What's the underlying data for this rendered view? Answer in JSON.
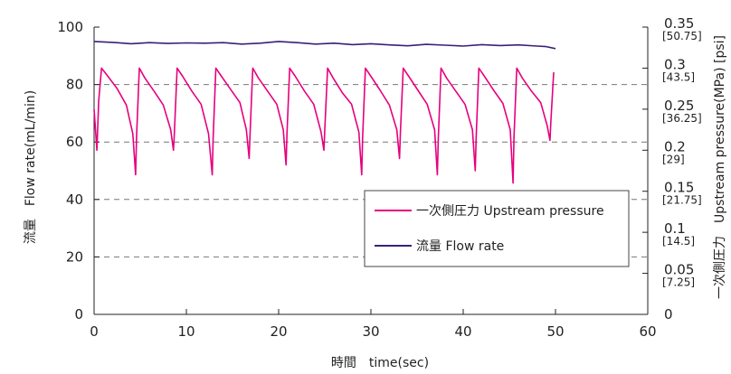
{
  "chart_data": {
    "type": "line",
    "xlabel": "時間　time(sec)",
    "ylabel_left": "流量　Flow rate(mL/min)",
    "ylabel_right": "一次側圧力　Upstream pressure(MPa) [psi]",
    "xlim": [
      0,
      60
    ],
    "ylim_left": [
      0,
      100
    ],
    "ylim_right": [
      0,
      0.35
    ],
    "x_ticks": [
      "0",
      "10",
      "20",
      "30",
      "40",
      "50",
      "60"
    ],
    "y_left_ticks": [
      "0",
      "20",
      "40",
      "60",
      "80",
      "100"
    ],
    "y_right_ticks": [
      {
        "value": "0",
        "sub": ""
      },
      {
        "value": "0.05",
        "sub": "[7.25]"
      },
      {
        "value": "0.1",
        "sub": "[14.5]"
      },
      {
        "value": "0.15",
        "sub": "[21.75]"
      },
      {
        "value": "0.2",
        "sub": "[29]"
      },
      {
        "value": "0.25",
        "sub": "[36.25]"
      },
      {
        "value": "0.3",
        "sub": "[43.5]"
      },
      {
        "value": "0.35",
        "sub": "[50.75]"
      }
    ],
    "grid": "horizontal-dashed",
    "legend_position": "center-right",
    "series": [
      {
        "name": "一次側圧力 Upstream pressure",
        "axis": "right",
        "color": "#e6007e",
        "x": [
          0,
          0.3,
          0.5,
          0.8,
          1.5,
          2.5,
          3.5,
          4.2,
          4.5,
          4.6,
          4.9,
          5.5,
          6.5,
          7.5,
          8.3,
          8.6,
          8.7,
          9.0,
          9.6,
          10.6,
          11.6,
          12.4,
          12.8,
          12.9,
          13.2,
          13.8,
          14.8,
          15.8,
          16.5,
          16.8,
          16.9,
          17.2,
          17.8,
          18.8,
          19.8,
          20.5,
          20.8,
          20.9,
          21.2,
          21.8,
          22.8,
          23.8,
          24.6,
          24.9,
          25.0,
          25.3,
          25.9,
          26.9,
          27.9,
          28.7,
          29.0,
          29.1,
          29.4,
          30.0,
          31.0,
          32.0,
          32.8,
          33.1,
          33.2,
          33.5,
          34.1,
          35.1,
          36.1,
          36.9,
          37.2,
          37.3,
          37.6,
          38.2,
          39.2,
          40.2,
          41.0,
          41.3,
          41.4,
          41.7,
          42.3,
          43.3,
          44.3,
          45.1,
          45.4,
          45.5,
          45.8,
          46.4,
          47.4,
          48.4,
          49.1,
          49.4,
          49.5,
          49.8
        ],
        "y": [
          0.25,
          0.2,
          0.26,
          0.3,
          0.29,
          0.275,
          0.255,
          0.22,
          0.17,
          0.215,
          0.3,
          0.288,
          0.272,
          0.255,
          0.225,
          0.2,
          0.22,
          0.3,
          0.29,
          0.272,
          0.256,
          0.22,
          0.17,
          0.215,
          0.3,
          0.29,
          0.274,
          0.258,
          0.225,
          0.19,
          0.22,
          0.3,
          0.288,
          0.272,
          0.256,
          0.225,
          0.182,
          0.22,
          0.3,
          0.29,
          0.272,
          0.256,
          0.222,
          0.2,
          0.225,
          0.3,
          0.288,
          0.27,
          0.256,
          0.222,
          0.17,
          0.215,
          0.3,
          0.29,
          0.273,
          0.255,
          0.225,
          0.19,
          0.222,
          0.3,
          0.29,
          0.273,
          0.256,
          0.225,
          0.17,
          0.215,
          0.3,
          0.288,
          0.272,
          0.256,
          0.225,
          0.175,
          0.215,
          0.3,
          0.29,
          0.273,
          0.257,
          0.225,
          0.16,
          0.215,
          0.3,
          0.288,
          0.272,
          0.258,
          0.23,
          0.212,
          0.235,
          0.295
        ]
      },
      {
        "name": "流量 Flow rate",
        "axis": "left",
        "color": "#3b1f7a",
        "x": [
          0,
          2,
          4,
          6,
          8,
          10,
          12,
          14,
          16,
          18,
          20,
          22,
          24,
          26,
          28,
          30,
          32,
          34,
          36,
          38,
          40,
          42,
          44,
          46,
          48,
          49,
          50
        ],
        "y": [
          95,
          94.7,
          94.2,
          94.6,
          94.3,
          94.5,
          94.4,
          94.6,
          94.1,
          94.4,
          95,
          94.6,
          94.1,
          94.4,
          93.9,
          94.2,
          93.8,
          93.5,
          94,
          93.7,
          93.4,
          93.9,
          93.6,
          93.8,
          93.4,
          93.2,
          92.5
        ]
      }
    ]
  }
}
